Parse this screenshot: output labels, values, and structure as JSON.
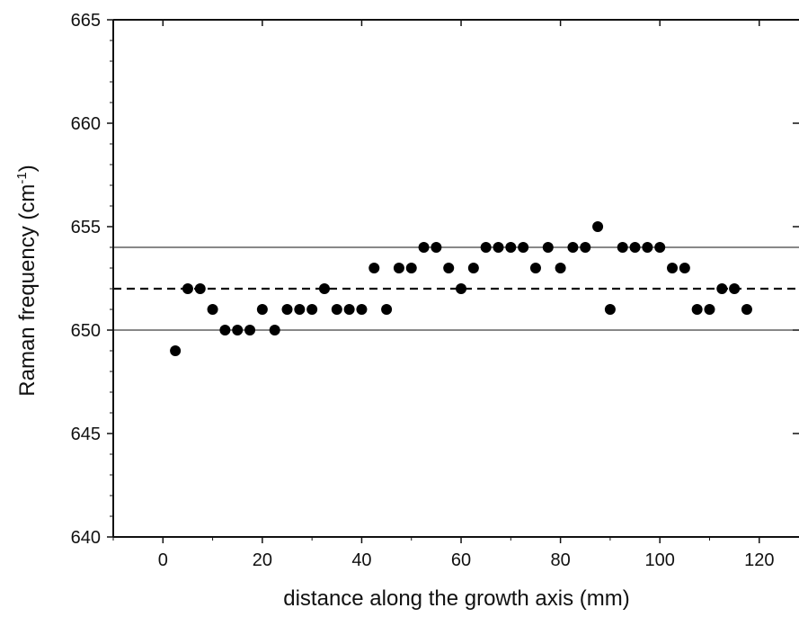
{
  "chart_data": {
    "type": "scatter",
    "title": "",
    "xlabel": "distance along the growth axis (mm)",
    "ylabel": {
      "main": "Raman frequency (cm",
      "superscript": "-1",
      "closing": ")"
    },
    "xlim": [
      -10,
      128
    ],
    "ylim": [
      640,
      665
    ],
    "x_ticks": [
      0,
      20,
      40,
      60,
      80,
      100,
      120
    ],
    "y_ticks": [
      640,
      645,
      650,
      655,
      660,
      665
    ],
    "x_tick_labels": [
      "0",
      "20",
      "40",
      "60",
      "80",
      "100",
      "120"
    ],
    "y_tick_labels": [
      "640",
      "645",
      "650",
      "655",
      "660",
      "665"
    ],
    "grid": false,
    "legend": "none",
    "reference_lines": [
      {
        "y": 654,
        "style": "solid"
      },
      {
        "y": 652,
        "style": "dashed"
      },
      {
        "y": 650,
        "style": "solid"
      }
    ],
    "series": [
      {
        "marker": "filled-circle",
        "color": "#000000",
        "x": [
          2.5,
          5,
          7.5,
          10,
          12.5,
          15,
          17.5,
          20,
          22.5,
          25,
          27.5,
          30,
          32.5,
          35,
          37.5,
          40,
          42.5,
          45,
          47.5,
          50,
          52.5,
          55,
          57.5,
          60,
          62.5,
          65,
          67.5,
          70,
          72.5,
          75,
          77.5,
          80,
          82.5,
          85,
          87.5,
          90,
          92.5,
          95,
          97.5,
          100,
          102.5,
          105,
          107.5,
          110,
          112.5,
          115,
          117.5
        ],
        "y": [
          649,
          652,
          652,
          651,
          650,
          650,
          650,
          651,
          650,
          651,
          651,
          651,
          652,
          651,
          651,
          651,
          653,
          651,
          653,
          653,
          654,
          654,
          653,
          652,
          653,
          654,
          654,
          654,
          654,
          653,
          654,
          653,
          654,
          654,
          655,
          651,
          654,
          654,
          654,
          654,
          653,
          653,
          651,
          651,
          652,
          652,
          651
        ]
      }
    ]
  }
}
